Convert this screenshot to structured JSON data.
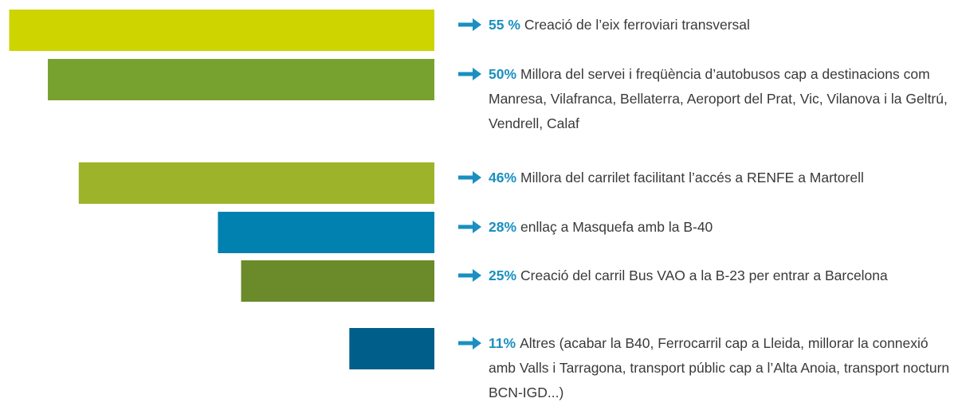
{
  "chart_data": {
    "type": "bar",
    "orientation": "horizontal-left",
    "categories": [
      "Creació de l’eix ferroviari transversal",
      "Millora del servei i freqüència d’autobusos cap a destinacions com Manresa, Vilafranca, Bellaterra, Aeroport del Prat, Vic, Vilanova i la Geltrú, Vendrell, Calaf",
      "Millora del carrilet facilitant l’accés a RENFE a Martorell",
      "enllaç a Masquefa amb la B-40",
      "Creació del carril Bus VAO a la B-23 per entrar a Barcelona",
      "Altres (acabar la B40, Ferrocarril cap a Lleida, millorar la connexió amb Valls i Tarragona, transport públic cap a l’Alta Anoia, transport nocturn BCN-IGD...)"
    ],
    "values": [
      55,
      50,
      46,
      28,
      25,
      11
    ],
    "value_labels": [
      "55 %",
      "50%",
      "46%",
      "28%",
      "25%",
      "11%"
    ],
    "colors": [
      "#cdd400",
      "#78a22f",
      "#9db42a",
      "#0081b0",
      "#6b8a2a",
      "#005f8a"
    ]
  }
}
